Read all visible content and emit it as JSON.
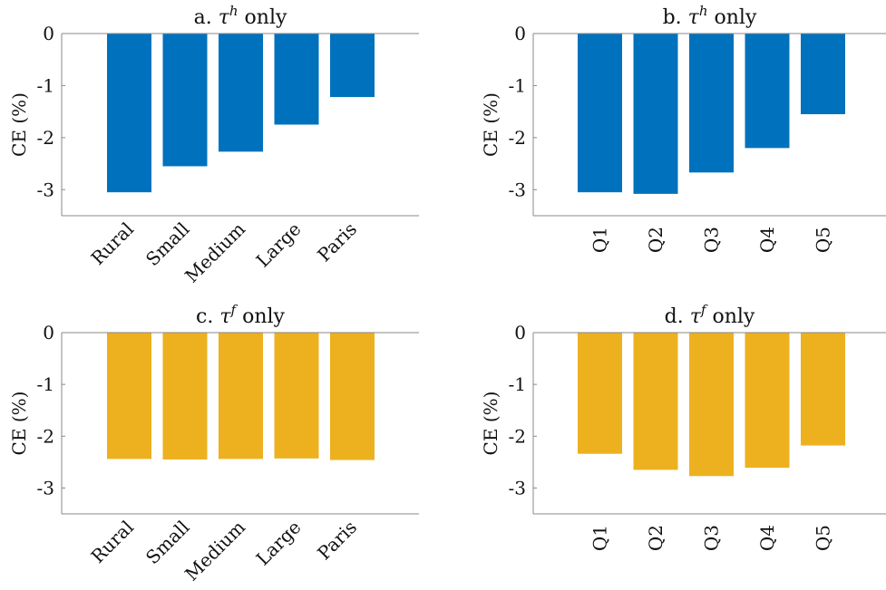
{
  "chart_data": [
    {
      "type": "bar",
      "title": {
        "prefix": "a.",
        "symbol": "τ",
        "superscript": "h",
        "suffix": "only"
      },
      "ylabel": "CE (%)",
      "ylim": [
        -3.5,
        0
      ],
      "yticks": [
        0,
        -1,
        -2,
        -3
      ],
      "ytick_labels": [
        "0",
        "-1",
        "-2",
        "-3"
      ],
      "categories": [
        "Rural",
        "Small",
        "Medium",
        "Large",
        "Paris"
      ],
      "values": [
        -3.05,
        -2.55,
        -2.27,
        -1.75,
        -1.22
      ],
      "color": "#0072BD",
      "label_style": "diagonal"
    },
    {
      "type": "bar",
      "title": {
        "prefix": "b.",
        "symbol": "τ",
        "superscript": "h",
        "suffix": "only"
      },
      "ylabel": "CE (%)",
      "ylim": [
        -3.5,
        0
      ],
      "yticks": [
        0,
        -1,
        -2,
        -3
      ],
      "ytick_labels": [
        "0",
        "-1",
        "-2",
        "-3"
      ],
      "categories": [
        "Q1",
        "Q2",
        "Q3",
        "Q4",
        "Q5"
      ],
      "values": [
        -3.05,
        -3.08,
        -2.67,
        -2.2,
        -1.55
      ],
      "color": "#0072BD",
      "label_style": "vertical"
    },
    {
      "type": "bar",
      "title": {
        "prefix": "c.",
        "symbol": "τ",
        "superscript": "f",
        "suffix": "only"
      },
      "ylabel": "CE (%)",
      "ylim": [
        -3.5,
        0
      ],
      "yticks": [
        0,
        -1,
        -2,
        -3
      ],
      "ytick_labels": [
        "0",
        "-1",
        "-2",
        "-3"
      ],
      "categories": [
        "Rural",
        "Small",
        "Medium",
        "Large",
        "Paris"
      ],
      "values": [
        -2.44,
        -2.45,
        -2.44,
        -2.43,
        -2.46
      ],
      "color": "#EDB120",
      "label_style": "diagonal"
    },
    {
      "type": "bar",
      "title": {
        "prefix": "d.",
        "symbol": "τ",
        "superscript": "f",
        "suffix": "only"
      },
      "ylabel": "CE (%)",
      "ylim": [
        -3.5,
        0
      ],
      "yticks": [
        0,
        -1,
        -2,
        -3
      ],
      "ytick_labels": [
        "0",
        "-1",
        "-2",
        "-3"
      ],
      "categories": [
        "Q1",
        "Q2",
        "Q3",
        "Q4",
        "Q5"
      ],
      "values": [
        -2.34,
        -2.65,
        -2.77,
        -2.61,
        -2.18
      ],
      "color": "#EDB120",
      "label_style": "vertical"
    }
  ]
}
